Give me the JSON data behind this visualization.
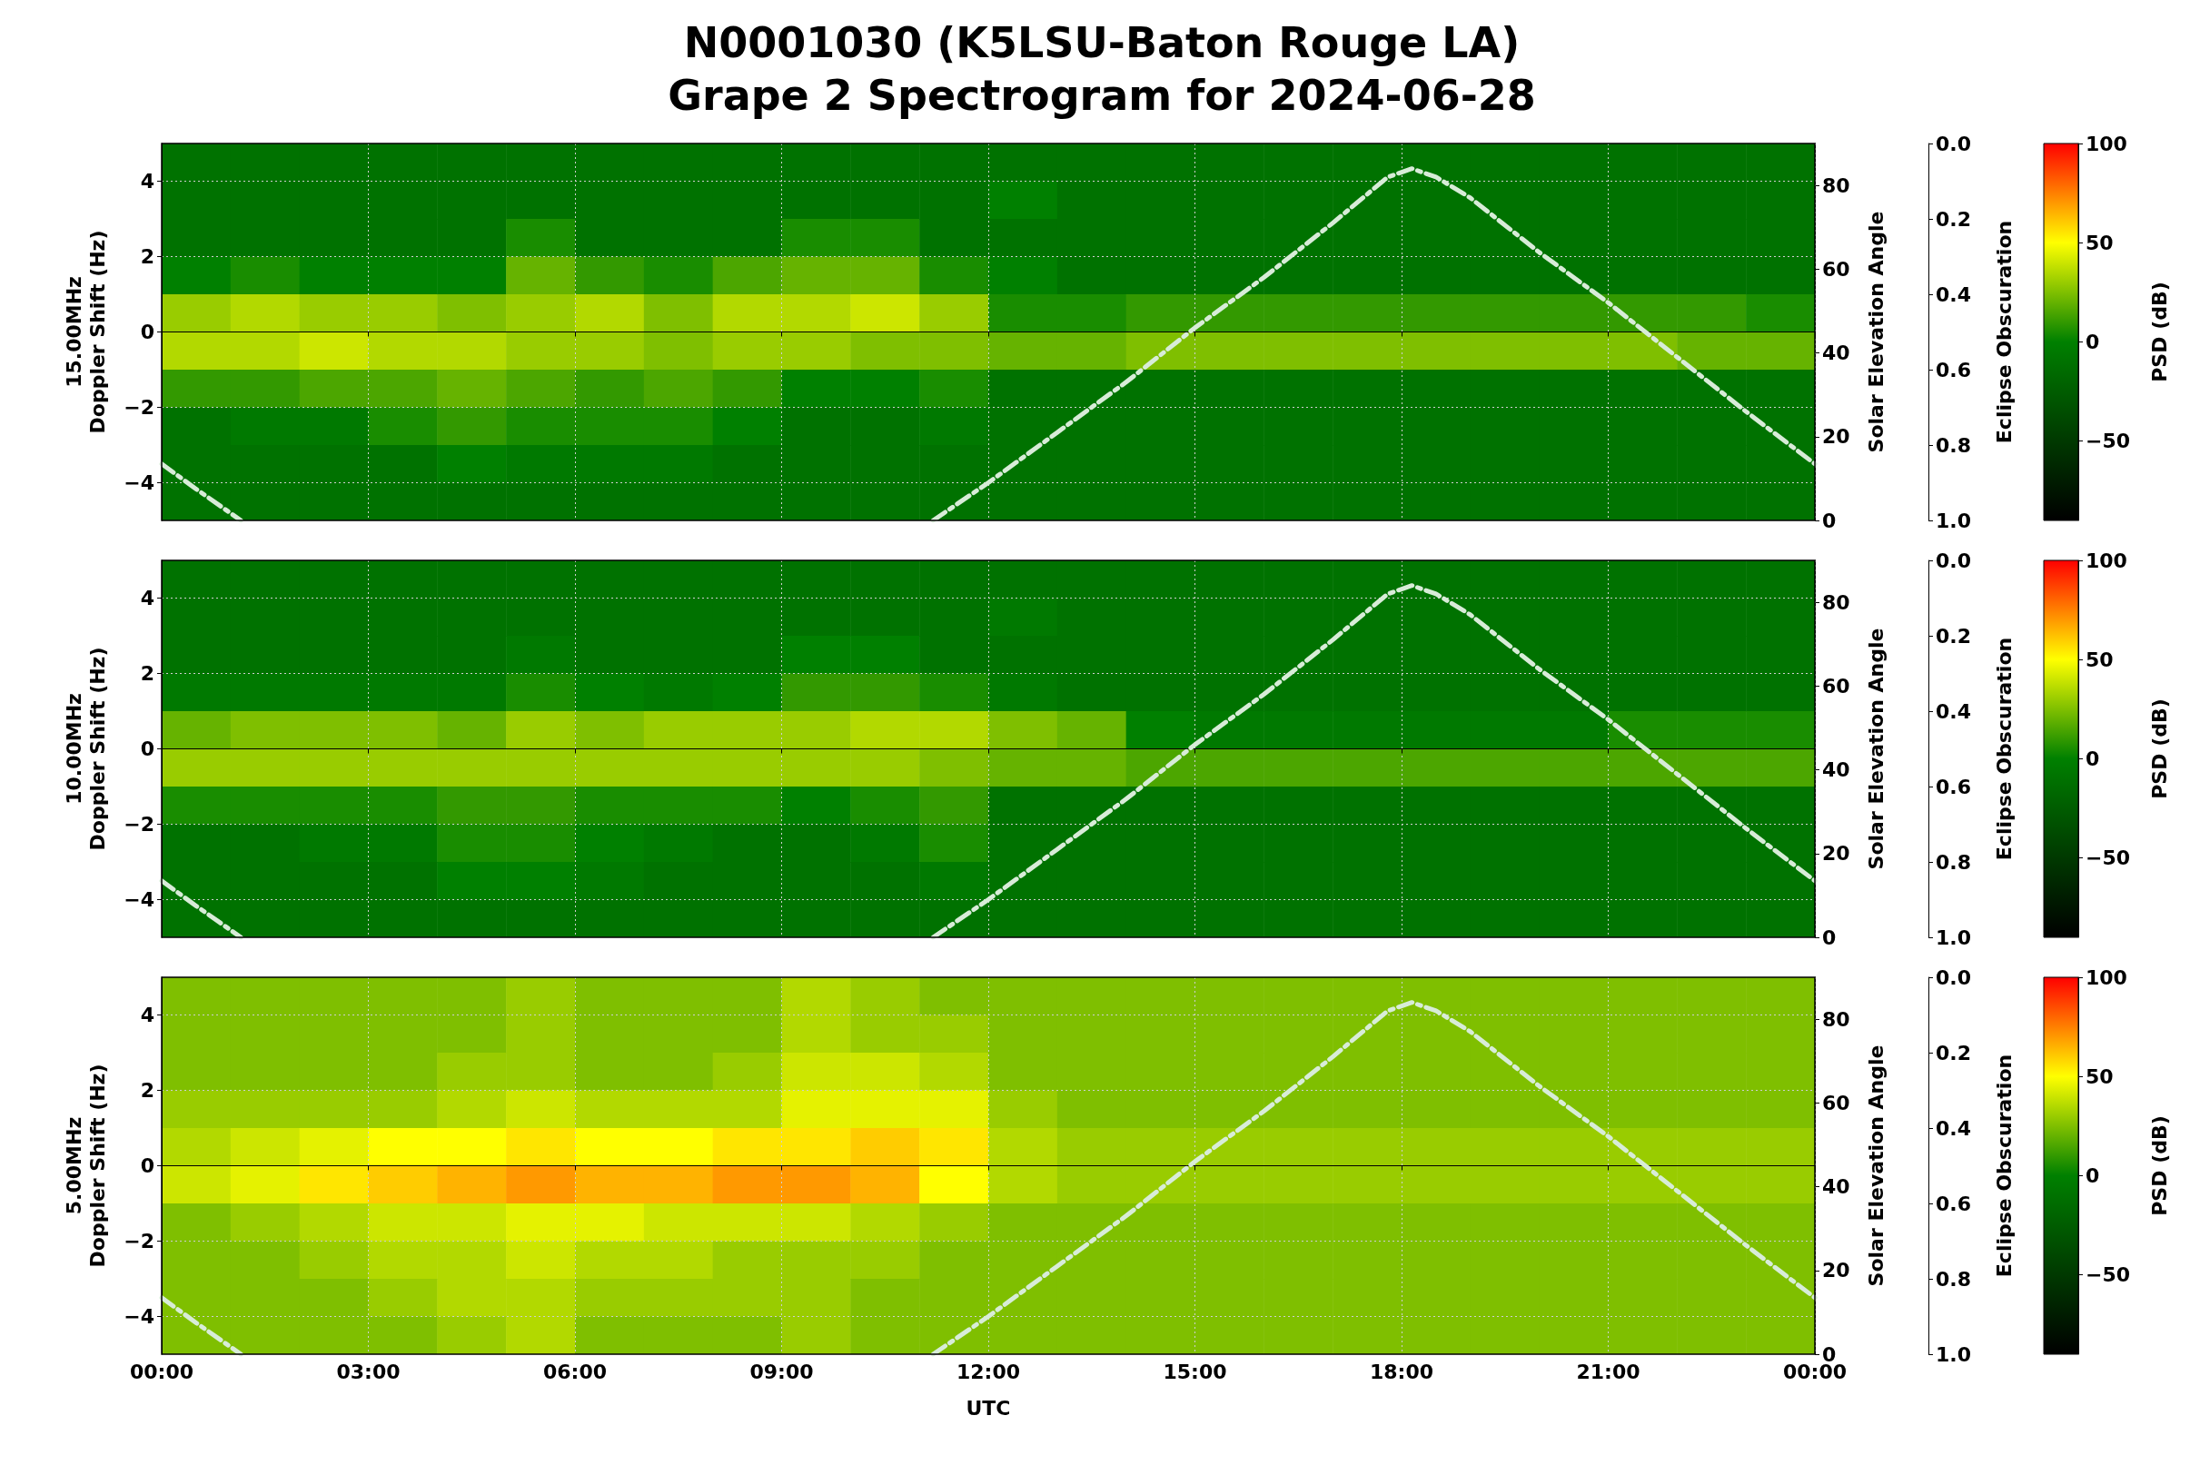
{
  "chart_data": [
    {
      "type": "heatmap",
      "title": "N0001030 (K5LSU-Baton Rouge LA)\nGrape 2 Spectrogram for 2024-06-28",
      "ylabel": "15.00MHz\nDoppler Shift (Hz)",
      "y2label": "Solar Elevation Angle",
      "y3label": "Eclipse Obscuration",
      "clabel": "PSD (dB)",
      "tick_labels": "y",
      "x": [
        0.5,
        1.5,
        2.5,
        3.5,
        4.5,
        5.5,
        6.5,
        7.5,
        8.5,
        9.5,
        10.5,
        11.5,
        12.5,
        13.5,
        14.5,
        15.5,
        16.5,
        17.5,
        18.5,
        19.5,
        20.5,
        21.5,
        22.5,
        23.5
      ],
      "y": [
        4.5,
        3.5,
        2.5,
        1.5,
        0.5,
        -0.5,
        -1.5,
        -2.5,
        -3.5,
        -4.5
      ],
      "xlim": [
        0,
        24
      ],
      "xticks": [
        {
          "value": 0,
          "label": null
        },
        {
          "value": 3,
          "label": null
        },
        {
          "value": 6,
          "label": null
        },
        {
          "value": 9,
          "label": null
        },
        {
          "value": 12,
          "label": null
        },
        {
          "value": 15,
          "label": null
        },
        {
          "value": 18,
          "label": null
        },
        {
          "value": 21,
          "label": null
        },
        {
          "value": 24,
          "label": null
        }
      ],
      "ylim": [
        -5,
        5
      ],
      "yticks": [
        -4,
        -2,
        0,
        2,
        4
      ],
      "y2lim": [
        0,
        90
      ],
      "y2ticks": [
        0,
        20,
        40,
        60,
        80
      ],
      "y3lim": [
        1,
        0
      ],
      "y3ticks": [
        {
          "value": 0,
          "label": "0.0"
        },
        {
          "value": 0.2,
          "label": "0.2"
        },
        {
          "value": 0.4,
          "label": "0.4"
        },
        {
          "value": 0.6,
          "label": "0.6"
        },
        {
          "value": 0.8,
          "label": "0.8"
        },
        {
          "value": 1,
          "label": "1.0"
        }
      ],
      "clim": [
        -90,
        100
      ],
      "cticks": [
        -50,
        0,
        50,
        100
      ],
      "grid": true,
      "cells": [
        [
          -10,
          -10,
          -10,
          -10,
          -10,
          -10,
          -10,
          -10,
          -10,
          -10,
          -10,
          -10,
          -10,
          -10,
          -10,
          -10,
          -10,
          -10,
          -10,
          -10,
          -10,
          -10,
          -10,
          -10
        ],
        [
          -10,
          -10,
          -10,
          -10,
          -10,
          -10,
          -10,
          -10,
          -10,
          -10,
          -10,
          -10,
          0,
          -10,
          -10,
          -10,
          -10,
          -10,
          -10,
          -10,
          -10,
          -10,
          -10,
          -10
        ],
        [
          -10,
          -10,
          -10,
          -10,
          -10,
          5,
          -10,
          -10,
          -10,
          5,
          5,
          -10,
          -10,
          -10,
          -10,
          -10,
          -10,
          -10,
          -10,
          -10,
          -10,
          -10,
          -10,
          -10
        ],
        [
          0,
          5,
          0,
          0,
          0,
          20,
          10,
          5,
          15,
          20,
          20,
          5,
          0,
          -10,
          -10,
          -10,
          -10,
          -10,
          -10,
          -10,
          -10,
          -10,
          -10,
          -10
        ],
        [
          30,
          35,
          30,
          30,
          25,
          30,
          35,
          25,
          35,
          35,
          40,
          30,
          5,
          5,
          10,
          10,
          10,
          10,
          10,
          10,
          10,
          10,
          10,
          5
        ],
        [
          35,
          35,
          40,
          35,
          35,
          30,
          30,
          25,
          30,
          30,
          25,
          25,
          20,
          20,
          25,
          25,
          25,
          25,
          25,
          25,
          25,
          25,
          20,
          20
        ],
        [
          10,
          10,
          15,
          15,
          20,
          15,
          10,
          15,
          10,
          0,
          0,
          5,
          -10,
          -10,
          -10,
          -10,
          -10,
          -10,
          -10,
          -10,
          -10,
          -10,
          -10,
          -10
        ],
        [
          -10,
          -5,
          -5,
          5,
          10,
          5,
          5,
          5,
          0,
          -10,
          -10,
          -5,
          -10,
          -10,
          -10,
          -10,
          -10,
          -10,
          -10,
          -10,
          -10,
          -10,
          -10,
          -10
        ],
        [
          -10,
          -10,
          -10,
          -10,
          0,
          -5,
          -5,
          -5,
          -10,
          -10,
          -10,
          -10,
          -10,
          -10,
          -10,
          -10,
          -10,
          -10,
          -10,
          -10,
          -10,
          -10,
          -10,
          -10
        ],
        [
          -10,
          -10,
          -10,
          -10,
          -10,
          -10,
          -10,
          -10,
          -10,
          -10,
          -10,
          -10,
          -10,
          -10,
          -10,
          -10,
          -10,
          -10,
          -10,
          -10,
          -10,
          -10,
          -10,
          -10
        ]
      ],
      "series": [
        {
          "type": "line",
          "axis": "y2",
          "color": "#d8ecd8",
          "line_style": "dashed",
          "x": [
            0,
            0.5,
            1.15,
            1.2,
            11.1,
            11.2,
            12,
            13,
            14,
            15,
            16,
            17,
            17.8,
            18.15,
            18.5,
            19,
            20,
            21,
            22,
            23,
            24
          ],
          "values": [
            13.5,
            7.5,
            0,
            null,
            null,
            0,
            9,
            21,
            33,
            46,
            58,
            71,
            82,
            84,
            82,
            77,
            64,
            52,
            39,
            26,
            13.5
          ]
        }
      ]
    },
    {
      "type": "heatmap",
      "ylabel": "10.00MHz\nDoppler Shift (Hz)",
      "y2label": "Solar Elevation Angle",
      "y3label": "Eclipse Obscuration",
      "clabel": "PSD (dB)",
      "tick_labels": "y",
      "x": [
        0.5,
        1.5,
        2.5,
        3.5,
        4.5,
        5.5,
        6.5,
        7.5,
        8.5,
        9.5,
        10.5,
        11.5,
        12.5,
        13.5,
        14.5,
        15.5,
        16.5,
        17.5,
        18.5,
        19.5,
        20.5,
        21.5,
        22.5,
        23.5
      ],
      "y": [
        4.5,
        3.5,
        2.5,
        1.5,
        0.5,
        -0.5,
        -1.5,
        -2.5,
        -3.5,
        -4.5
      ],
      "xlim": [
        0,
        24
      ],
      "xticks": [
        {
          "value": 0,
          "label": null
        },
        {
          "value": 3,
          "label": null
        },
        {
          "value": 6,
          "label": null
        },
        {
          "value": 9,
          "label": null
        },
        {
          "value": 12,
          "label": null
        },
        {
          "value": 15,
          "label": null
        },
        {
          "value": 18,
          "label": null
        },
        {
          "value": 21,
          "label": null
        },
        {
          "value": 24,
          "label": null
        }
      ],
      "ylim": [
        -5,
        5
      ],
      "yticks": [
        -4,
        -2,
        0,
        2,
        4
      ],
      "y2lim": [
        0,
        90
      ],
      "y2ticks": [
        0,
        20,
        40,
        60,
        80
      ],
      "y3lim": [
        1,
        0
      ],
      "y3ticks": [
        {
          "value": 0,
          "label": "0.0"
        },
        {
          "value": 0.2,
          "label": "0.2"
        },
        {
          "value": 0.4,
          "label": "0.4"
        },
        {
          "value": 0.6,
          "label": "0.6"
        },
        {
          "value": 0.8,
          "label": "0.8"
        },
        {
          "value": 1,
          "label": "1.0"
        }
      ],
      "clim": [
        -90,
        100
      ],
      "cticks": [
        -50,
        0,
        50,
        100
      ],
      "grid": true,
      "cells": [
        [
          -10,
          -10,
          -10,
          -10,
          -10,
          -10,
          -10,
          -10,
          -10,
          -10,
          -10,
          -10,
          -10,
          -10,
          -10,
          -10,
          -10,
          -10,
          -10,
          -10,
          -10,
          -10,
          -10,
          -10
        ],
        [
          -10,
          -10,
          -10,
          -10,
          -10,
          -10,
          -10,
          -10,
          -10,
          -10,
          -10,
          -10,
          -5,
          -10,
          -10,
          -10,
          -10,
          -10,
          -10,
          -10,
          -10,
          -10,
          -10,
          -10
        ],
        [
          -10,
          -10,
          -10,
          -10,
          -10,
          -5,
          -10,
          -10,
          -10,
          0,
          0,
          -10,
          -10,
          -10,
          -10,
          -10,
          -10,
          -10,
          -10,
          -10,
          -10,
          -10,
          -10,
          -10
        ],
        [
          -5,
          -5,
          -5,
          -5,
          -5,
          5,
          0,
          -5,
          0,
          10,
          10,
          5,
          -5,
          -10,
          -10,
          -10,
          -10,
          -10,
          -10,
          -10,
          -10,
          -10,
          -10,
          -10
        ],
        [
          20,
          25,
          25,
          25,
          20,
          30,
          25,
          30,
          30,
          30,
          35,
          35,
          25,
          20,
          0,
          -5,
          -5,
          -5,
          -5,
          -5,
          -5,
          5,
          5,
          5
        ],
        [
          30,
          30,
          30,
          30,
          30,
          30,
          30,
          30,
          30,
          30,
          30,
          25,
          20,
          20,
          15,
          15,
          15,
          15,
          15,
          15,
          15,
          15,
          15,
          15
        ],
        [
          5,
          5,
          5,
          5,
          10,
          10,
          5,
          5,
          5,
          0,
          5,
          10,
          -10,
          -10,
          -10,
          -10,
          -10,
          -10,
          -10,
          -10,
          -10,
          -10,
          -10,
          -10
        ],
        [
          -10,
          -10,
          -5,
          -5,
          5,
          5,
          0,
          -5,
          -10,
          -10,
          -5,
          5,
          -10,
          -10,
          -10,
          -10,
          -10,
          -10,
          -10,
          -10,
          -10,
          -10,
          -10,
          -10
        ],
        [
          -10,
          -10,
          -10,
          -10,
          0,
          0,
          -5,
          -10,
          -10,
          -10,
          -10,
          -5,
          -10,
          -10,
          -10,
          -10,
          -10,
          -10,
          -10,
          -10,
          -10,
          -10,
          -10,
          -10
        ],
        [
          -10,
          -10,
          -10,
          -10,
          -10,
          -10,
          -10,
          -10,
          -10,
          -10,
          -10,
          -10,
          -10,
          -10,
          -10,
          -10,
          -10,
          -10,
          -10,
          -10,
          -10,
          -10,
          -10,
          -10
        ]
      ],
      "series": [
        {
          "type": "line",
          "axis": "y2",
          "color": "#d8ecd8",
          "line_style": "dashed",
          "x": [
            0,
            0.5,
            1.15,
            1.2,
            11.1,
            11.2,
            12,
            13,
            14,
            15,
            16,
            17,
            17.8,
            18.15,
            18.5,
            19,
            20,
            21,
            22,
            23,
            24
          ],
          "values": [
            13.5,
            7.5,
            0,
            null,
            null,
            0,
            9,
            21,
            33,
            46,
            58,
            71,
            82,
            84,
            82,
            77,
            64,
            52,
            39,
            26,
            13.5
          ]
        }
      ]
    },
    {
      "type": "heatmap",
      "ylabel": "5.00MHz\nDoppler Shift (Hz)",
      "xlabel": "UTC",
      "y2label": "Solar Elevation Angle",
      "y3label": "Eclipse Obscuration",
      "clabel": "PSD (dB)",
      "x": [
        0.5,
        1.5,
        2.5,
        3.5,
        4.5,
        5.5,
        6.5,
        7.5,
        8.5,
        9.5,
        10.5,
        11.5,
        12.5,
        13.5,
        14.5,
        15.5,
        16.5,
        17.5,
        18.5,
        19.5,
        20.5,
        21.5,
        22.5,
        23.5
      ],
      "y": [
        4.5,
        3.5,
        2.5,
        1.5,
        0.5,
        -0.5,
        -1.5,
        -2.5,
        -3.5,
        -4.5
      ],
      "xlim": [
        0,
        24
      ],
      "xticks": [
        {
          "value": 0,
          "label": "00:00"
        },
        {
          "value": 3,
          "label": "03:00"
        },
        {
          "value": 6,
          "label": "06:00"
        },
        {
          "value": 9,
          "label": "09:00"
        },
        {
          "value": 12,
          "label": "12:00"
        },
        {
          "value": 15,
          "label": "15:00"
        },
        {
          "value": 18,
          "label": "18:00"
        },
        {
          "value": 21,
          "label": "21:00"
        },
        {
          "value": 24,
          "label": "00:00"
        }
      ],
      "ylim": [
        -5,
        5
      ],
      "yticks": [
        -4,
        -2,
        0,
        2,
        4
      ],
      "y2lim": [
        0,
        90
      ],
      "y2ticks": [
        0,
        20,
        40,
        60,
        80
      ],
      "y3lim": [
        1,
        0
      ],
      "y3ticks": [
        {
          "value": 0,
          "label": "0.0"
        },
        {
          "value": 0.2,
          "label": "0.2"
        },
        {
          "value": 0.4,
          "label": "0.4"
        },
        {
          "value": 0.6,
          "label": "0.6"
        },
        {
          "value": 0.8,
          "label": "0.8"
        },
        {
          "value": 1,
          "label": "1.0"
        }
      ],
      "clim": [
        -90,
        100
      ],
      "cticks": [
        -50,
        0,
        50,
        100
      ],
      "grid": true,
      "cells": [
        [
          25,
          25,
          25,
          25,
          25,
          30,
          25,
          25,
          25,
          35,
          30,
          25,
          25,
          25,
          25,
          25,
          25,
          25,
          25,
          25,
          25,
          25,
          25,
          25
        ],
        [
          25,
          25,
          25,
          25,
          25,
          30,
          25,
          25,
          25,
          35,
          30,
          30,
          25,
          25,
          25,
          25,
          25,
          25,
          25,
          25,
          25,
          25,
          25,
          25
        ],
        [
          25,
          25,
          25,
          25,
          30,
          30,
          25,
          25,
          30,
          40,
          40,
          35,
          25,
          25,
          25,
          25,
          25,
          25,
          25,
          25,
          25,
          25,
          25,
          25
        ],
        [
          30,
          30,
          30,
          30,
          35,
          40,
          35,
          35,
          35,
          45,
          45,
          45,
          30,
          25,
          25,
          25,
          25,
          25,
          25,
          25,
          25,
          25,
          25,
          25
        ],
        [
          35,
          40,
          45,
          50,
          50,
          55,
          50,
          50,
          55,
          55,
          60,
          55,
          35,
          30,
          30,
          30,
          30,
          30,
          30,
          30,
          30,
          30,
          30,
          30
        ],
        [
          40,
          45,
          55,
          60,
          65,
          70,
          65,
          65,
          70,
          70,
          65,
          50,
          35,
          30,
          30,
          30,
          30,
          30,
          30,
          30,
          30,
          30,
          30,
          30
        ],
        [
          25,
          30,
          35,
          40,
          40,
          45,
          45,
          40,
          40,
          40,
          35,
          30,
          25,
          25,
          25,
          25,
          25,
          25,
          25,
          25,
          25,
          25,
          25,
          25
        ],
        [
          25,
          25,
          30,
          35,
          35,
          40,
          35,
          35,
          30,
          30,
          30,
          25,
          25,
          25,
          25,
          25,
          25,
          25,
          25,
          25,
          25,
          25,
          25,
          25
        ],
        [
          25,
          25,
          25,
          30,
          35,
          35,
          30,
          30,
          30,
          30,
          25,
          25,
          25,
          25,
          25,
          25,
          25,
          25,
          25,
          25,
          25,
          25,
          25,
          25
        ],
        [
          25,
          25,
          25,
          25,
          30,
          35,
          25,
          25,
          25,
          30,
          25,
          25,
          25,
          25,
          25,
          25,
          25,
          25,
          25,
          25,
          25,
          25,
          25,
          25
        ]
      ],
      "series": [
        {
          "type": "line",
          "axis": "y2",
          "color": "#d8ecd8",
          "line_style": "dashed",
          "x": [
            0,
            0.5,
            1.15,
            1.2,
            11.1,
            11.2,
            12,
            13,
            14,
            15,
            16,
            17,
            17.8,
            18.15,
            18.5,
            19,
            20,
            21,
            22,
            23,
            24
          ],
          "values": [
            13.5,
            7.5,
            0,
            null,
            null,
            0,
            9,
            21,
            33,
            46,
            58,
            71,
            82,
            84,
            82,
            77,
            64,
            52,
            39,
            26,
            13.5
          ]
        }
      ]
    }
  ]
}
